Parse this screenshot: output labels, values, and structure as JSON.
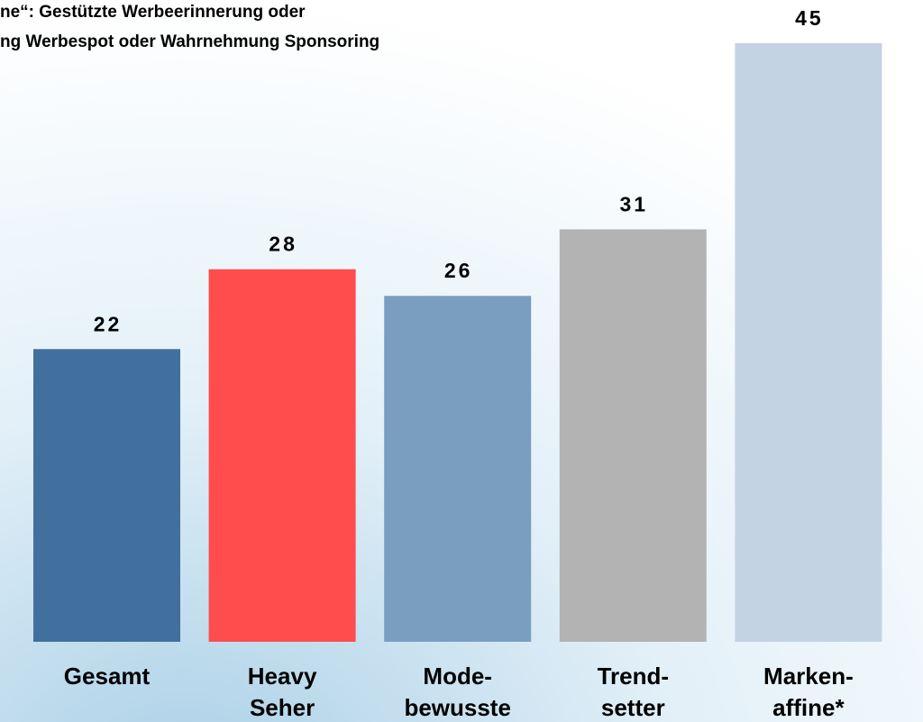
{
  "chart_data": {
    "type": "bar",
    "title": [
      "ne“: Gestützte Werbeerinnerung oder",
      "ng Werbespot oder Wahrnehmung Sponsoring"
    ],
    "categories": [
      [
        "Gesamt"
      ],
      [
        "Heavy",
        "Seher"
      ],
      [
        "Mode-",
        "bewusste"
      ],
      [
        "Trend-",
        "setter"
      ],
      [
        "Marken-",
        "affine*"
      ]
    ],
    "values": [
      22,
      28,
      26,
      31,
      45
    ],
    "colors": [
      "#41709f",
      "#ff4c4c",
      "#7a9ec0",
      "#b3b3b3",
      "#c3d3e3"
    ]
  }
}
